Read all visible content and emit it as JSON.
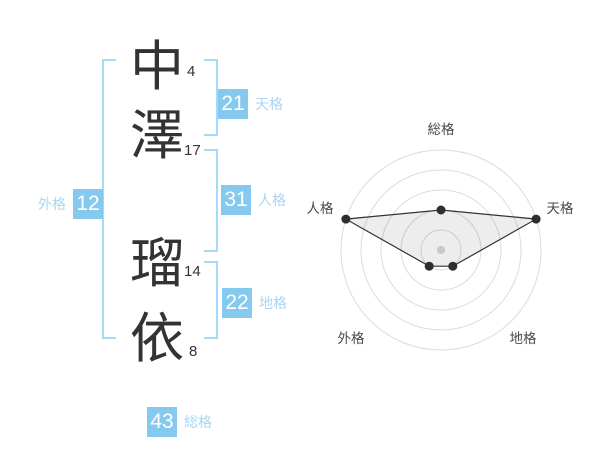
{
  "name": {
    "chars": [
      {
        "char": "中",
        "strokes": "4"
      },
      {
        "char": "澤",
        "strokes": "17"
      },
      {
        "char": "瑠",
        "strokes": "14"
      },
      {
        "char": "依",
        "strokes": "8"
      }
    ]
  },
  "scores": {
    "tenkaku": {
      "label": "天格",
      "value": "21"
    },
    "jinkaku": {
      "label": "人格",
      "value": "31"
    },
    "chikaku": {
      "label": "地格",
      "value": "22"
    },
    "gaikaku": {
      "label": "外格",
      "value": "12"
    },
    "soukaku": {
      "label": "総格",
      "value": "43"
    }
  },
  "colors": {
    "badge_bg": "#85caee",
    "badge_text": "#ffffff",
    "score_label": "#a9d6f3",
    "bracket": "#a6d9f7",
    "kanji_text": "#333333",
    "radar_ring": "#dcdcdc",
    "radar_line": "#333333",
    "radar_fill": "rgba(0,0,0,0.07)",
    "radar_dot": "#2e2e2e",
    "radar_center_dot": "#c8c8c8",
    "radar_label": "#4a4a4a"
  },
  "chart_data": {
    "type": "radar",
    "axes": [
      "総格",
      "天格",
      "地格",
      "外格",
      "人格"
    ],
    "values": [
      2,
      5,
      1,
      1,
      5
    ],
    "max": 5,
    "rings": 5,
    "angles_deg": [
      -90,
      -18,
      54,
      126,
      198
    ],
    "title": "",
    "legend": "none",
    "grid": "concentric-circles"
  }
}
